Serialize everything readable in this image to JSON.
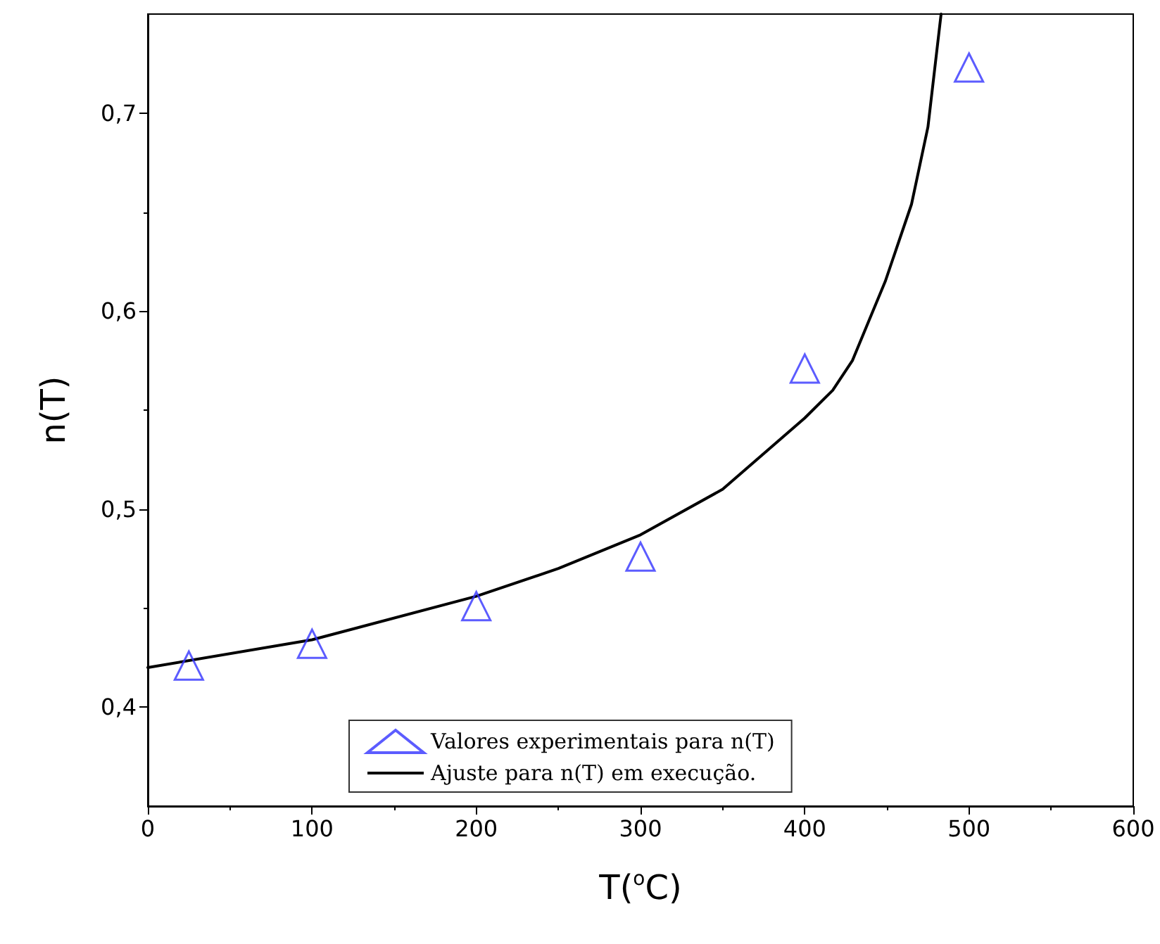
{
  "chart_data": {
    "type": "scatter",
    "xlabel": "T($^{o}$C)",
    "ylabel": "n(T)",
    "xlim": [
      0,
      600
    ],
    "xticks": [
      0,
      100,
      200,
      300,
      400,
      500,
      600
    ],
    "ylim": [
      0.35,
      0.75
    ],
    "yticks": [
      {
        "value": 0.4,
        "label": "0,4"
      },
      {
        "value": 0.5,
        "label": "0,5"
      },
      {
        "value": 0.6,
        "label": "0,6"
      },
      {
        "value": 0.7,
        "label": "0,7"
      }
    ],
    "grid": false,
    "legend": "bottom",
    "series": [
      {
        "name": "Valores experimentais para n(T)",
        "marker": "triangle",
        "color": "#3333ff",
        "x": [
          25,
          100,
          200,
          300,
          400,
          500
        ],
        "values": [
          0.421,
          0.432,
          0.451,
          0.476,
          0.571,
          0.723
        ]
      },
      {
        "name": "Ajuste para n(T) em execução.",
        "type": "line",
        "marker": "none",
        "line_style": "solid",
        "color": "#000000",
        "x": [
          0,
          100,
          200,
          250,
          300,
          350,
          400,
          417,
          429,
          439,
          449,
          465,
          475,
          483
        ],
        "values": [
          0.42,
          0.434,
          0.456,
          0.47,
          0.487,
          0.51,
          0.546,
          0.56,
          0.575,
          0.595,
          0.615,
          0.654,
          0.693,
          0.75
        ]
      }
    ]
  }
}
